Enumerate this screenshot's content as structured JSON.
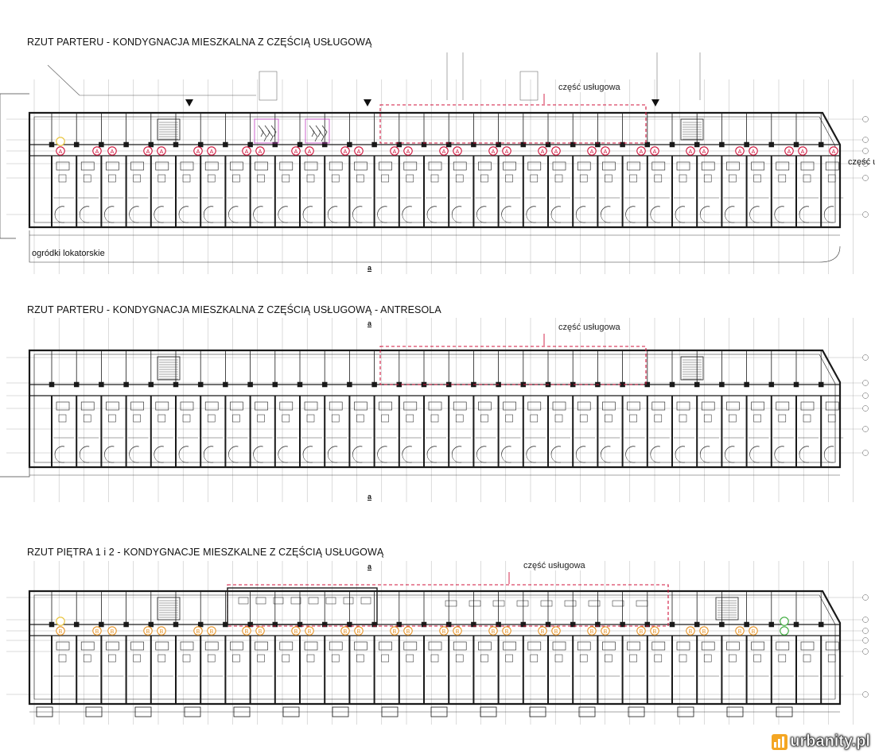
{
  "plans": [
    {
      "title": "RZUT PARTERU - KONDYGNACJA MIESZKALNA Z CZĘŚCIĄ USŁUGOWĄ",
      "zone_label": "część usługowa",
      "extra_label": "ogródki lokatorskie",
      "side_label": "część u",
      "section_mark": "a",
      "unit_marker": "A"
    },
    {
      "title": "RZUT PARTERU - KONDYGNACJA MIESZKALNA Z CZĘŚCIĄ USŁUGOWĄ - ANTRESOLA",
      "zone_label": "część usługowa",
      "section_mark": "a"
    },
    {
      "title": "RZUT PIĘTRA 1 i 2 - KONDYGNACJE MIESZKALNE Z CZĘŚCIĄ USŁUGOWĄ",
      "zone_label": "część usługowa",
      "section_mark": "a",
      "unit_marker": "B"
    }
  ],
  "watermark": {
    "text": "urbanity.pl",
    "icon": "bar-chart-logo-icon"
  },
  "colors": {
    "line": "#1a1a1a",
    "grid": "#9a9a9a",
    "zone": "#d0143c",
    "marker_a": "#d0143c",
    "marker_b": "#e8962a",
    "marker_green": "#3aaa3a",
    "plant": "#c040c0",
    "logo": "#f4a623"
  }
}
